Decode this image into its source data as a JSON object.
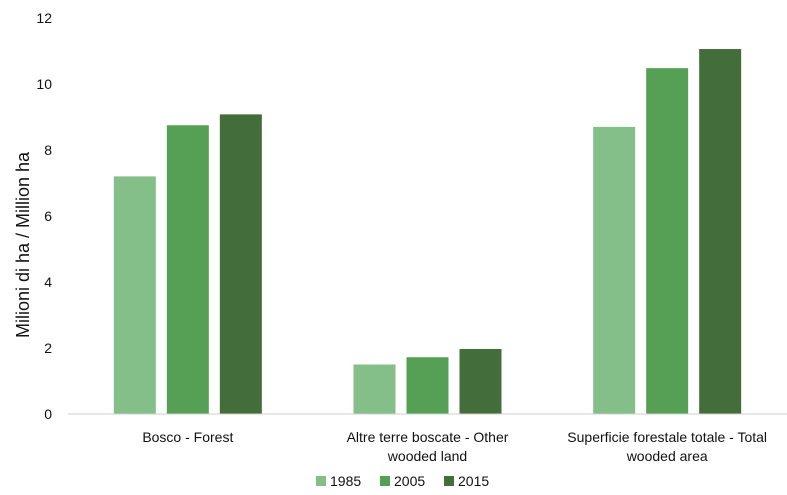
{
  "chart_data": {
    "type": "bar",
    "title": "",
    "xlabel": "",
    "ylabel": "Milioni di ha / Million ha",
    "ylim": [
      0,
      12
    ],
    "yticks": [
      0,
      2,
      4,
      6,
      8,
      10,
      12
    ],
    "grid": false,
    "legend_position": "bottom",
    "categories": [
      [
        "Bosco - Forest"
      ],
      [
        "Altre terre boscate - Other",
        "wooded land"
      ],
      [
        "Superficie forestale totale - Total",
        "wooded area"
      ]
    ],
    "series": [
      {
        "name": "1985",
        "color": "#84bf8a",
        "values": [
          7.2,
          1.5,
          8.7
        ]
      },
      {
        "name": "2005",
        "color": "#55a055",
        "values": [
          8.75,
          1.72,
          10.48
        ]
      },
      {
        "name": "2015",
        "color": "#436d3b",
        "values": [
          9.08,
          1.97,
          11.06
        ]
      }
    ]
  }
}
